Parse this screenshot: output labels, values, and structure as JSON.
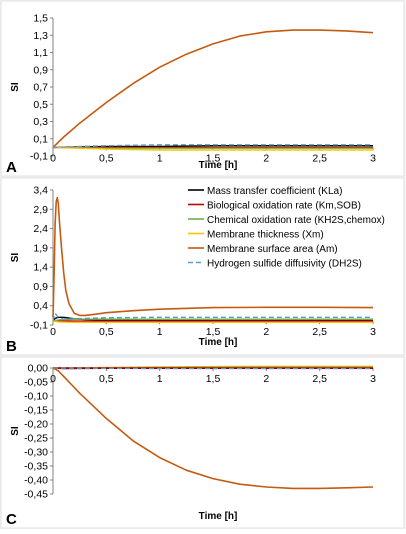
{
  "colors": {
    "background": "#f4f4f4",
    "plot_background": "#ffffff",
    "axis": "#808080",
    "grid": "#d9d9d9",
    "text": "#000000",
    "kla": "#000000",
    "km": "#c00000",
    "chem": "#70ad47",
    "xm": "#ffc000",
    "am": "#c55a11",
    "dh2s": "#5b9bd5"
  },
  "chart_data": [
    {
      "panel": "A",
      "type": "line",
      "xlabel": "Time [h]",
      "ylabel": "SI",
      "xlim": [
        0,
        3
      ],
      "ylim": [
        -0.1,
        1.5
      ],
      "xticks": [
        "0",
        "0,5",
        "1",
        "1,5",
        "2",
        "2,5",
        "3"
      ],
      "yticks": [
        "-0,1",
        "0,1",
        "0,3",
        "0,5",
        "0,7",
        "0,9",
        "1,1",
        "1,3",
        "1,5"
      ],
      "series": [
        {
          "key": "am",
          "x": [
            0,
            0.1,
            0.25,
            0.5,
            0.75,
            1.0,
            1.25,
            1.5,
            1.75,
            2.0,
            2.25,
            2.5,
            2.75,
            3.0
          ],
          "y": [
            0,
            0.12,
            0.28,
            0.52,
            0.74,
            0.93,
            1.08,
            1.2,
            1.29,
            1.34,
            1.36,
            1.36,
            1.35,
            1.33
          ]
        },
        {
          "key": "kla",
          "x": [
            0,
            0.5,
            1,
            1.5,
            2,
            2.5,
            3
          ],
          "y": [
            0.0,
            0.01,
            0.01,
            0.02,
            0.02,
            0.02,
            0.02
          ]
        },
        {
          "key": "km",
          "x": [
            0,
            0.5,
            1,
            1.5,
            2,
            2.5,
            3
          ],
          "y": [
            0.0,
            0.0,
            0.0,
            0.0,
            0.0,
            0.0,
            0.0
          ]
        },
        {
          "key": "chem",
          "x": [
            0,
            0.5,
            1,
            1.5,
            2,
            2.5,
            3
          ],
          "y": [
            0.0,
            -0.01,
            -0.01,
            -0.01,
            -0.01,
            -0.01,
            -0.01
          ]
        },
        {
          "key": "xm",
          "x": [
            0,
            0.5,
            1,
            1.5,
            2,
            2.5,
            3
          ],
          "y": [
            0.0,
            -0.02,
            -0.03,
            -0.03,
            -0.03,
            -0.03,
            -0.03
          ]
        },
        {
          "key": "dh2s",
          "x": [
            0,
            0.5,
            1,
            1.5,
            2,
            2.5,
            3
          ],
          "y": [
            0.0,
            0.02,
            0.03,
            0.03,
            0.03,
            0.03,
            0.03
          ]
        }
      ]
    },
    {
      "panel": "B",
      "type": "line",
      "xlabel": "Time [h]",
      "ylabel": "SI",
      "xlim": [
        0,
        3
      ],
      "ylim": [
        -0.1,
        3.4
      ],
      "xticks": [
        "0",
        "0,5",
        "1",
        "1,5",
        "2",
        "2,5",
        "3"
      ],
      "yticks": [
        "-0,1",
        "0,4",
        "0,9",
        "1,4",
        "1,9",
        "2,4",
        "2,9",
        "3,4"
      ],
      "legend": [
        {
          "key": "kla",
          "label": "Mass transfer coefficient (KLa)"
        },
        {
          "key": "km",
          "label": "Biological oxidation rate (Km,SOB)"
        },
        {
          "key": "chem",
          "label": "Chemical oxidation rate (KH2S,chemox)"
        },
        {
          "key": "xm",
          "label": "Membrane thickness (Xm)"
        },
        {
          "key": "am",
          "label": "Membrane surface area (Am)"
        },
        {
          "key": "dh2s",
          "label": "Hydrogen sulfide diffusivity (DH2S)"
        }
      ],
      "series": [
        {
          "key": "am",
          "x": [
            0,
            0.01,
            0.02,
            0.03,
            0.04,
            0.05,
            0.06,
            0.08,
            0.1,
            0.12,
            0.15,
            0.2,
            0.25,
            0.3,
            0.4,
            0.5,
            0.75,
            1.0,
            1.5,
            2.0,
            2.5,
            3.0
          ],
          "y": [
            0.1,
            1.2,
            2.5,
            3.1,
            3.2,
            3.05,
            2.6,
            1.9,
            1.25,
            0.8,
            0.45,
            0.2,
            0.15,
            0.15,
            0.18,
            0.22,
            0.27,
            0.31,
            0.35,
            0.36,
            0.36,
            0.35
          ]
        },
        {
          "key": "kla",
          "x": [
            0,
            0.02,
            0.05,
            0.1,
            0.2,
            0.3,
            0.5,
            1,
            2,
            3
          ],
          "y": [
            0,
            0.07,
            0.1,
            0.1,
            0.06,
            0.04,
            0.03,
            0.02,
            0.02,
            0.02
          ]
        },
        {
          "key": "km",
          "x": [
            0,
            0.05,
            0.1,
            0.2,
            0.5,
            1,
            2,
            3
          ],
          "y": [
            0,
            0.02,
            0.01,
            0.0,
            0.0,
            0.0,
            0.0,
            0.0
          ]
        },
        {
          "key": "chem",
          "x": [
            0,
            0.05,
            0.2,
            0.5,
            1,
            2,
            3
          ],
          "y": [
            0,
            0.03,
            0.05,
            0.05,
            0.05,
            0.05,
            0.05
          ]
        },
        {
          "key": "xm",
          "x": [
            0,
            0.05,
            0.2,
            0.5,
            1,
            2,
            3
          ],
          "y": [
            0,
            -0.02,
            -0.03,
            -0.03,
            -0.03,
            -0.03,
            -0.03
          ]
        },
        {
          "key": "dh2s",
          "x": [
            0,
            0.02,
            0.05,
            0.1,
            0.2,
            0.5,
            1,
            2,
            3
          ],
          "y": [
            0,
            0.2,
            0.1,
            0.05,
            0.06,
            0.09,
            0.1,
            0.1,
            0.1
          ]
        }
      ]
    },
    {
      "panel": "C",
      "type": "line",
      "xlabel": "Time [h]",
      "ylabel": "SI",
      "xlim": [
        0,
        3
      ],
      "ylim": [
        -0.45,
        0
      ],
      "xticks": [
        "0",
        "0,5",
        "1",
        "1,5",
        "2",
        "2,5",
        "3"
      ],
      "yticks": [
        "0,00",
        "-0,05",
        "-0,10",
        "-0,15",
        "-0,20",
        "-0,25",
        "-0,30",
        "-0,35",
        "-0,40",
        "-0,45"
      ],
      "series": [
        {
          "key": "am",
          "x": [
            0,
            0.05,
            0.1,
            0.15,
            0.25,
            0.5,
            0.75,
            1.0,
            1.25,
            1.5,
            1.75,
            2.0,
            2.25,
            2.5,
            2.75,
            3.0
          ],
          "y": [
            0,
            -0.01,
            -0.03,
            -0.05,
            -0.09,
            -0.18,
            -0.26,
            -0.32,
            -0.365,
            -0.395,
            -0.415,
            -0.425,
            -0.43,
            -0.43,
            -0.428,
            -0.425
          ]
        },
        {
          "key": "xm",
          "x": [
            0,
            0.5,
            1,
            1.5,
            2,
            2.5,
            3
          ],
          "y": [
            0,
            0.002,
            0.004,
            0.005,
            0.006,
            0.006,
            0.006
          ]
        },
        {
          "key": "kla",
          "x": [
            0,
            0.1,
            0.5,
            1,
            2,
            3
          ],
          "y": [
            0,
            -0.002,
            -0.001,
            -0.001,
            -0.001,
            -0.001
          ]
        },
        {
          "key": "chem",
          "x": [
            0,
            0.5,
            1,
            2,
            3
          ],
          "y": [
            0,
            0.001,
            0.002,
            0.003,
            0.003
          ]
        },
        {
          "key": "km",
          "x": [
            0,
            0.5,
            1,
            2,
            3
          ],
          "y": [
            0,
            0.0,
            0.0,
            0.0,
            0.0
          ]
        },
        {
          "key": "dh2s",
          "x": [
            0,
            0.5,
            1,
            2,
            3
          ],
          "y": [
            0,
            -0.001,
            -0.002,
            -0.002,
            -0.002
          ]
        }
      ]
    }
  ]
}
